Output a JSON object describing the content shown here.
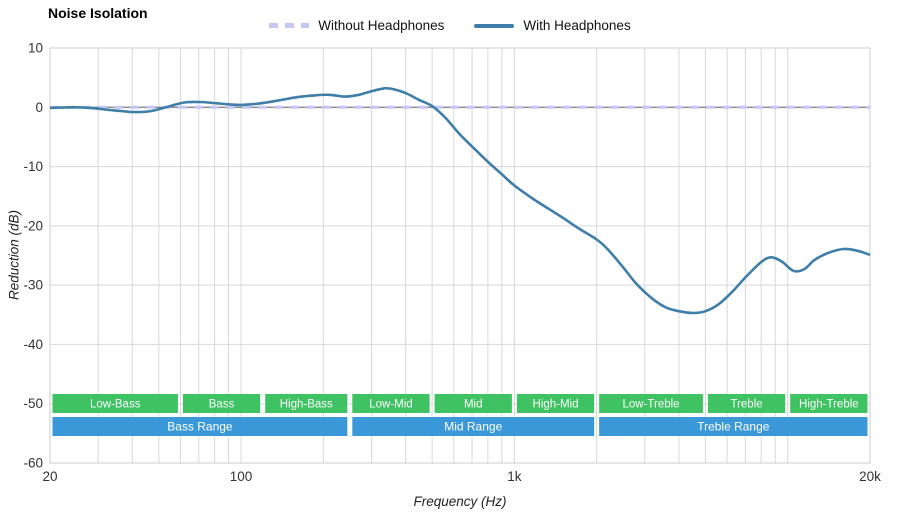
{
  "chart_data": {
    "type": "line",
    "title": "Noise Isolation",
    "xlabel": "Frequency (Hz)",
    "ylabel": "Reduction (dB)",
    "x_scale": "log",
    "xlim": [
      20,
      20000
    ],
    "ylim": [
      -60,
      10
    ],
    "grid": true,
    "legend_position": "top-center",
    "x_ticks": [
      {
        "value": 20,
        "label": "20"
      },
      {
        "value": 100,
        "label": "100"
      },
      {
        "value": 1000,
        "label": "1k"
      },
      {
        "value": 20000,
        "label": "20k"
      }
    ],
    "y_ticks": [
      {
        "value": 10,
        "label": "10"
      },
      {
        "value": 0,
        "label": "0"
      },
      {
        "value": -10,
        "label": "-10"
      },
      {
        "value": -20,
        "label": "-20"
      },
      {
        "value": -30,
        "label": "-30"
      },
      {
        "value": -40,
        "label": "-40"
      },
      {
        "value": -50,
        "label": "-50"
      },
      {
        "value": -60,
        "label": "-60"
      }
    ],
    "series": [
      {
        "name": "Without Headphones",
        "color": "#c5c7f3",
        "dash": [
          9,
          7
        ],
        "width": 3,
        "points": [
          [
            20,
            0
          ],
          [
            20000,
            0
          ]
        ]
      },
      {
        "name": "With Headphones",
        "color": "#3e7ea9",
        "dash": null,
        "width": 2.6,
        "points": [
          [
            20,
            -0.1
          ],
          [
            24,
            0
          ],
          [
            28,
            -0.1
          ],
          [
            34,
            -0.5
          ],
          [
            40,
            -0.8
          ],
          [
            46,
            -0.7
          ],
          [
            54,
            0.1
          ],
          [
            62,
            0.8
          ],
          [
            70,
            0.9
          ],
          [
            80,
            0.7
          ],
          [
            90,
            0.5
          ],
          [
            100,
            0.4
          ],
          [
            115,
            0.6
          ],
          [
            135,
            1.1
          ],
          [
            160,
            1.7
          ],
          [
            185,
            2.0
          ],
          [
            210,
            2.1
          ],
          [
            240,
            1.8
          ],
          [
            270,
            2.1
          ],
          [
            300,
            2.7
          ],
          [
            335,
            3.2
          ],
          [
            365,
            3.0
          ],
          [
            400,
            2.4
          ],
          [
            450,
            1.2
          ],
          [
            500,
            0.2
          ],
          [
            560,
            -1.8
          ],
          [
            630,
            -4.5
          ],
          [
            700,
            -6.6
          ],
          [
            800,
            -9.2
          ],
          [
            900,
            -11.3
          ],
          [
            1000,
            -13.2
          ],
          [
            1150,
            -15.2
          ],
          [
            1300,
            -16.8
          ],
          [
            1500,
            -18.6
          ],
          [
            1700,
            -20.3
          ],
          [
            2000,
            -22.3
          ],
          [
            2200,
            -24.0
          ],
          [
            2500,
            -27.0
          ],
          [
            2800,
            -29.8
          ],
          [
            3200,
            -32.3
          ],
          [
            3600,
            -33.8
          ],
          [
            4000,
            -34.4
          ],
          [
            4500,
            -34.7
          ],
          [
            5000,
            -34.4
          ],
          [
            5600,
            -33.2
          ],
          [
            6300,
            -31.0
          ],
          [
            7000,
            -28.7
          ],
          [
            8000,
            -26.1
          ],
          [
            8700,
            -25.3
          ],
          [
            9500,
            -26.0
          ],
          [
            10500,
            -27.6
          ],
          [
            11500,
            -27.3
          ],
          [
            12500,
            -25.8
          ],
          [
            14000,
            -24.6
          ],
          [
            16000,
            -23.9
          ],
          [
            18000,
            -24.2
          ],
          [
            20000,
            -24.9
          ]
        ]
      }
    ],
    "bands": {
      "sub_color": "#3ec262",
      "main_color": "#3b98d8",
      "sub": [
        {
          "label": "Low-Bass",
          "from": 20,
          "to": 60
        },
        {
          "label": "Bass",
          "from": 60,
          "to": 120
        },
        {
          "label": "High-Bass",
          "from": 120,
          "to": 250
        },
        {
          "label": "Low-Mid",
          "from": 250,
          "to": 500
        },
        {
          "label": "Mid",
          "from": 500,
          "to": 1000
        },
        {
          "label": "High-Mid",
          "from": 1000,
          "to": 2000
        },
        {
          "label": "Low-Treble",
          "from": 2000,
          "to": 5000
        },
        {
          "label": "Treble",
          "from": 5000,
          "to": 10000
        },
        {
          "label": "High-Treble",
          "from": 10000,
          "to": 20000
        }
      ],
      "main": [
        {
          "label": "Bass Range",
          "from": 20,
          "to": 250
        },
        {
          "label": "Mid Range",
          "from": 250,
          "to": 2000
        },
        {
          "label": "Treble Range",
          "from": 2000,
          "to": 20000
        }
      ]
    },
    "style": {
      "grid_color": "#d8d8d8",
      "border_color": "#cccccc",
      "zero_line_color": "#666666",
      "tick_label_color": "#333333",
      "band_text_color": "#ffffff"
    }
  }
}
